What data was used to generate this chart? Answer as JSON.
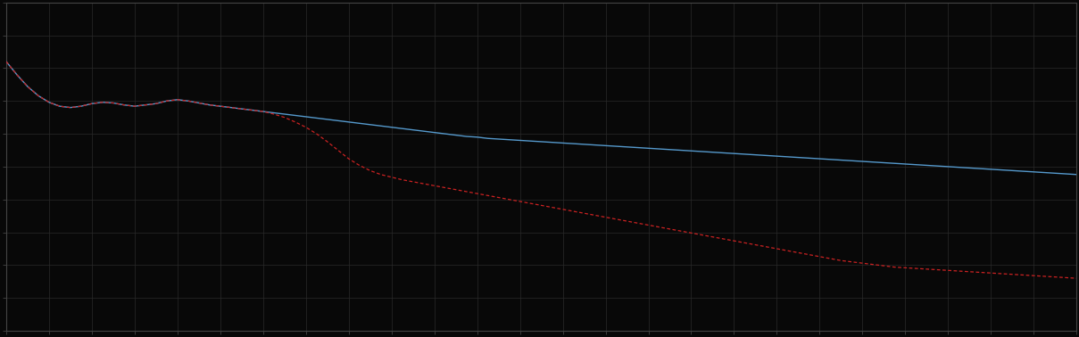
{
  "background_color": "#080808",
  "plot_bg_color": "#080808",
  "grid_color": "#2a2a2a",
  "spine_color": "#444444",
  "fig_width": 12.09,
  "fig_height": 3.78,
  "dpi": 100,
  "blue_line_color": "#5599cc",
  "red_line_color": "#cc2222",
  "blue_x": [
    0,
    1,
    2,
    3,
    4,
    5,
    6,
    7,
    8,
    9,
    10,
    11,
    12,
    13,
    14,
    15,
    16,
    17,
    18,
    19,
    20,
    21,
    22,
    23,
    24,
    25,
    26,
    27,
    28,
    29,
    30,
    31,
    32,
    33,
    34,
    35,
    36,
    37,
    38,
    39,
    40,
    41,
    42,
    43,
    44,
    45,
    46,
    47,
    48,
    49,
    50,
    51,
    52,
    53,
    54,
    55,
    56,
    57,
    58,
    59,
    60,
    61,
    62,
    63,
    64,
    65,
    66,
    67,
    68,
    69,
    70,
    71,
    72,
    73,
    74,
    75,
    76,
    77,
    78,
    79,
    80,
    81,
    82,
    83,
    84,
    85,
    86,
    87,
    88,
    89,
    90,
    91,
    92,
    93,
    94,
    95,
    96,
    97,
    98,
    99,
    100
  ],
  "blue_y": [
    4.1,
    3.9,
    3.72,
    3.58,
    3.48,
    3.42,
    3.4,
    3.42,
    3.46,
    3.48,
    3.47,
    3.44,
    3.42,
    3.44,
    3.46,
    3.5,
    3.52,
    3.5,
    3.47,
    3.44,
    3.42,
    3.4,
    3.38,
    3.36,
    3.34,
    3.32,
    3.3,
    3.28,
    3.26,
    3.24,
    3.22,
    3.2,
    3.18,
    3.16,
    3.14,
    3.12,
    3.1,
    3.08,
    3.06,
    3.04,
    3.02,
    3.0,
    2.98,
    2.96,
    2.95,
    2.93,
    2.92,
    2.91,
    2.9,
    2.89,
    2.88,
    2.87,
    2.86,
    2.85,
    2.84,
    2.83,
    2.82,
    2.81,
    2.8,
    2.79,
    2.78,
    2.77,
    2.76,
    2.75,
    2.74,
    2.73,
    2.72,
    2.71,
    2.7,
    2.69,
    2.68,
    2.67,
    2.66,
    2.65,
    2.64,
    2.63,
    2.62,
    2.61,
    2.6,
    2.59,
    2.58,
    2.57,
    2.56,
    2.55,
    2.54,
    2.53,
    2.52,
    2.51,
    2.5,
    2.49,
    2.48,
    2.47,
    2.46,
    2.45,
    2.44,
    2.43,
    2.42,
    2.41,
    2.4,
    2.39,
    2.38
  ],
  "red_x": [
    0,
    1,
    2,
    3,
    4,
    5,
    6,
    7,
    8,
    9,
    10,
    11,
    12,
    13,
    14,
    15,
    16,
    17,
    18,
    19,
    20,
    21,
    22,
    23,
    24,
    25,
    26,
    27,
    28,
    29,
    30,
    31,
    32,
    33,
    34,
    35,
    36,
    37,
    38,
    39,
    40,
    41,
    42,
    43,
    44,
    45,
    46,
    47,
    48,
    49,
    50,
    51,
    52,
    53,
    54,
    55,
    56,
    57,
    58,
    59,
    60,
    61,
    62,
    63,
    64,
    65,
    66,
    67,
    68,
    69,
    70,
    71,
    72,
    73,
    74,
    75,
    76,
    77,
    78,
    79,
    80,
    81,
    82,
    83,
    84,
    85,
    86,
    87,
    88,
    89,
    90,
    91,
    92,
    93,
    94,
    95,
    96,
    97,
    98,
    99,
    100
  ],
  "red_y": [
    4.1,
    3.9,
    3.72,
    3.58,
    3.48,
    3.42,
    3.4,
    3.42,
    3.46,
    3.48,
    3.47,
    3.44,
    3.42,
    3.44,
    3.46,
    3.5,
    3.52,
    3.5,
    3.47,
    3.44,
    3.42,
    3.4,
    3.38,
    3.36,
    3.34,
    3.3,
    3.25,
    3.18,
    3.1,
    3.0,
    2.88,
    2.75,
    2.62,
    2.52,
    2.44,
    2.38,
    2.34,
    2.3,
    2.27,
    2.24,
    2.21,
    2.18,
    2.15,
    2.12,
    2.09,
    2.06,
    2.03,
    2.0,
    1.97,
    1.94,
    1.91,
    1.88,
    1.85,
    1.82,
    1.79,
    1.76,
    1.73,
    1.7,
    1.67,
    1.64,
    1.61,
    1.58,
    1.55,
    1.52,
    1.49,
    1.46,
    1.43,
    1.4,
    1.37,
    1.34,
    1.31,
    1.28,
    1.25,
    1.22,
    1.19,
    1.16,
    1.13,
    1.1,
    1.07,
    1.05,
    1.03,
    1.01,
    0.99,
    0.97,
    0.96,
    0.95,
    0.94,
    0.93,
    0.92,
    0.91,
    0.9,
    0.89,
    0.88,
    0.87,
    0.86,
    0.85,
    0.84,
    0.83,
    0.82,
    0.81,
    0.8
  ],
  "xlim": [
    0,
    100
  ],
  "ylim": [
    0,
    5
  ],
  "grid_major_x": 4,
  "grid_major_y": 0.5
}
